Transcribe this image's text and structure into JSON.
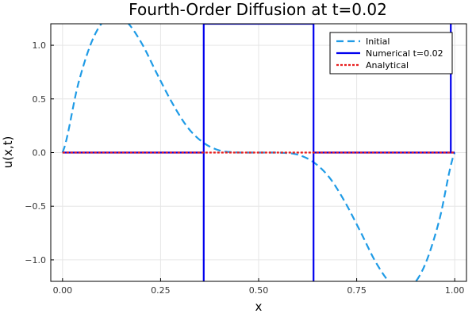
{
  "chart_data": {
    "type": "line",
    "title": "Fourth-Order Diffusion at t=0.02",
    "xlabel": "x",
    "ylabel": "u(x,t)",
    "xlim": [
      -0.03,
      1.03
    ],
    "ylim": [
      -1.2,
      1.2
    ],
    "x_ticks": [
      0.0,
      0.25,
      0.5,
      0.75,
      1.0
    ],
    "x_tick_labels": [
      "0.00",
      "0.25",
      "0.50",
      "0.75",
      "1.00"
    ],
    "y_ticks": [
      -1.0,
      -0.5,
      0.0,
      0.5,
      1.0
    ],
    "y_tick_labels": [
      "−1.0",
      "−0.5",
      "0.0",
      "0.5",
      "1.0"
    ],
    "grid": true,
    "legend_position": "top-right",
    "series": [
      {
        "name": "Initial",
        "color": "#1f9be6",
        "style": "dashed",
        "x": [
          0.0,
          0.04,
          0.08,
          0.12,
          0.16,
          0.2,
          0.24,
          0.28,
          0.32,
          0.36,
          0.4,
          0.44,
          0.48,
          0.52,
          0.56,
          0.6,
          0.64,
          0.68,
          0.72,
          0.76,
          0.8,
          0.84,
          0.88,
          0.92,
          0.96,
          1.0
        ],
        "y": [
          0.0,
          0.64,
          1.08,
          1.27,
          1.23,
          1.03,
          0.74,
          0.46,
          0.23,
          0.09,
          0.02,
          0.002,
          0.0,
          0.0,
          -0.002,
          -0.02,
          -0.09,
          -0.23,
          -0.46,
          -0.74,
          -1.03,
          -1.23,
          -1.27,
          -1.08,
          -0.64,
          0.0
        ]
      },
      {
        "name": "Numerical t=0.02",
        "color": "#0000ee",
        "style": "solid",
        "x": [
          0.0,
          0.36,
          0.36,
          0.36,
          0.64,
          0.64,
          0.64,
          0.99,
          0.99,
          0.99,
          1.0
        ],
        "y": [
          0.0,
          0.0,
          -1.2,
          1.2,
          1.2,
          -1.2,
          0.0,
          0.0,
          1.2,
          0.0,
          0.0
        ]
      },
      {
        "name": "Analytical",
        "color": "#e81e1e",
        "style": "dotted",
        "x": [
          0.0,
          0.25,
          0.5,
          0.75,
          1.0
        ],
        "y": [
          0.0,
          0.0,
          0.0,
          0.0,
          0.0
        ]
      }
    ]
  }
}
